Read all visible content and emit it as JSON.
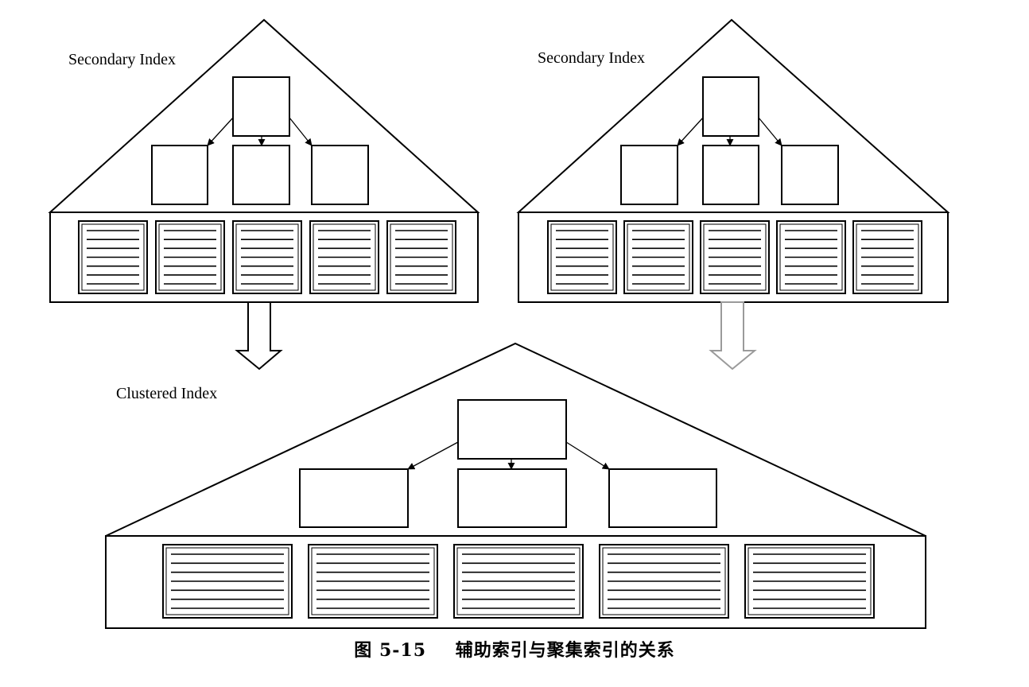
{
  "left_index": {
    "label": "Secondary Index"
  },
  "right_index": {
    "label": "Secondary Index"
  },
  "clustered_index": {
    "label": "Clustered Index"
  },
  "caption": {
    "number": "图 5-15",
    "text": "辅助索引与聚集索引的关系"
  }
}
